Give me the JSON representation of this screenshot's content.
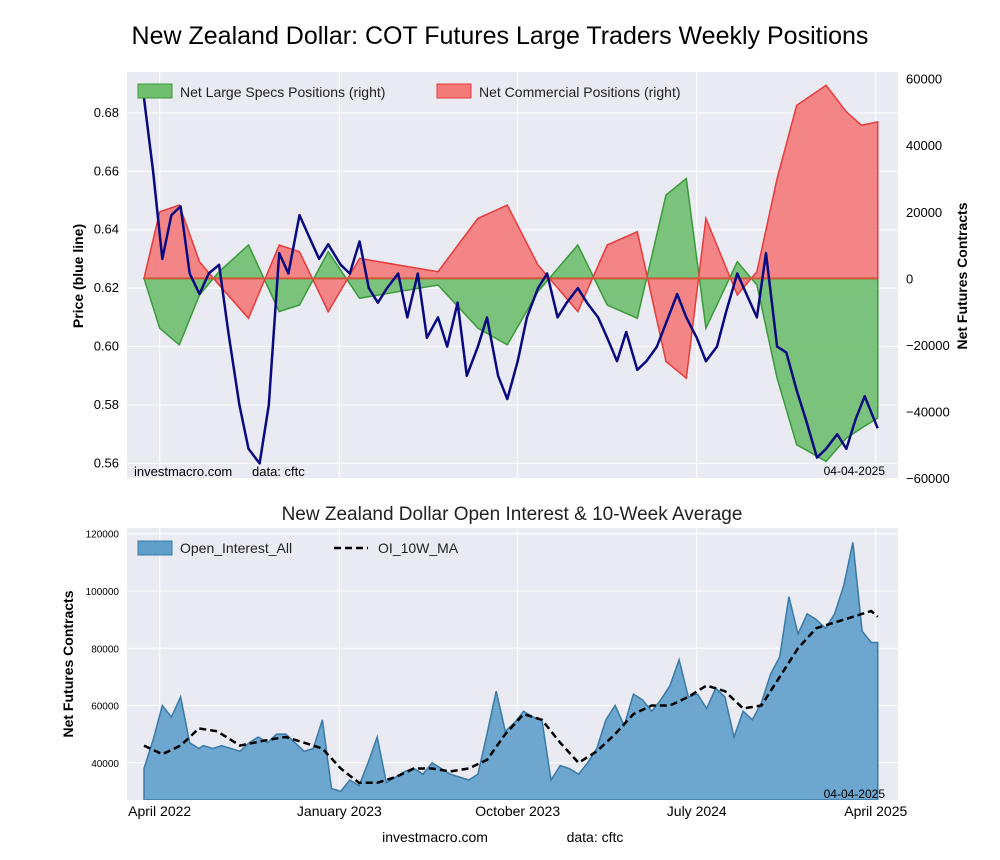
{
  "page": {
    "title": "New Zealand Dollar: COT Futures Large Traders Weekly Positions",
    "footer_left": "investmacro.com",
    "footer_right": "data: cftc"
  },
  "chart_data": [
    {
      "type": "line",
      "title": "",
      "ylabel": "Price (blue line)",
      "y2label": "Net Futures Contracts",
      "ylim": [
        0.555,
        0.694
      ],
      "y2lim": [
        -60000,
        62000
      ],
      "yticks": [
        "0.56",
        "0.58",
        "0.60",
        "0.62",
        "0.64",
        "0.66",
        "0.68"
      ],
      "y2ticks": [
        "−60000",
        "−40000",
        "−20000",
        "0",
        "20000",
        "40000",
        "60000"
      ],
      "grid": true,
      "legend": "top-left",
      "watermark_left": "investmacro.com",
      "watermark_mid": "data: cftc",
      "date_label": "04-04-2025",
      "series": [
        {
          "name": "Net Large Specs Positions (right)",
          "color": "#3a9a3a",
          "x": [
            "2022-03-08",
            "2022-04-01",
            "2022-05-01",
            "2022-06-01",
            "2022-07-01",
            "2022-08-15",
            "2022-10-01",
            "2022-11-01",
            "2022-12-15",
            "2023-02-01",
            "2023-04-01",
            "2023-06-01",
            "2023-08-01",
            "2023-09-15",
            "2023-11-01",
            "2024-01-01",
            "2024-02-15",
            "2024-04-01",
            "2024-05-15",
            "2024-06-15",
            "2024-07-15",
            "2024-09-01",
            "2024-10-01",
            "2024-11-01",
            "2024-12-01",
            "2025-01-15",
            "2025-02-15",
            "2025-03-10",
            "2025-04-04"
          ],
          "values": [
            0,
            -15000,
            -20000,
            -5000,
            2000,
            10000,
            -10000,
            -8000,
            8000,
            -6000,
            -4000,
            -2000,
            -15000,
            -20000,
            -4000,
            10000,
            -8000,
            -12000,
            25000,
            30000,
            -15000,
            5000,
            -2000,
            -30000,
            -50000,
            -55000,
            -48000,
            -45000,
            -42000
          ]
        },
        {
          "name": "Net Commercial Positions (right)",
          "color": "#e83a3a",
          "x": [
            "2022-03-08",
            "2022-04-01",
            "2022-05-01",
            "2022-06-01",
            "2022-07-01",
            "2022-08-15",
            "2022-10-01",
            "2022-11-01",
            "2022-12-15",
            "2023-02-01",
            "2023-04-01",
            "2023-06-01",
            "2023-08-01",
            "2023-09-15",
            "2023-11-01",
            "2024-01-01",
            "2024-02-15",
            "2024-04-01",
            "2024-05-15",
            "2024-06-15",
            "2024-07-15",
            "2024-09-01",
            "2024-10-01",
            "2024-11-01",
            "2024-12-01",
            "2025-01-15",
            "2025-02-15",
            "2025-03-10",
            "2025-04-04"
          ],
          "values": [
            0,
            20000,
            22000,
            5000,
            -2000,
            -12000,
            10000,
            8000,
            -10000,
            6000,
            4000,
            2000,
            18000,
            22000,
            4000,
            -10000,
            10000,
            14000,
            -25000,
            -30000,
            18000,
            -5000,
            2000,
            30000,
            52000,
            58000,
            50000,
            46000,
            47000
          ]
        },
        {
          "name": "Price",
          "color": "#0a0a80",
          "x": [
            "2022-03-08",
            "2022-03-22",
            "2022-04-05",
            "2022-04-19",
            "2022-05-03",
            "2022-05-17",
            "2022-06-01",
            "2022-06-15",
            "2022-07-01",
            "2022-07-15",
            "2022-08-01",
            "2022-08-15",
            "2022-09-01",
            "2022-09-15",
            "2022-10-01",
            "2022-10-15",
            "2022-11-01",
            "2022-11-15",
            "2022-12-01",
            "2022-12-15",
            "2023-01-03",
            "2023-01-17",
            "2023-02-01",
            "2023-02-15",
            "2023-03-01",
            "2023-03-15",
            "2023-04-01",
            "2023-04-15",
            "2023-05-01",
            "2023-05-15",
            "2023-06-01",
            "2023-06-15",
            "2023-07-01",
            "2023-07-15",
            "2023-08-01",
            "2023-08-15",
            "2023-09-01",
            "2023-09-15",
            "2023-10-01",
            "2023-10-15",
            "2023-11-01",
            "2023-11-15",
            "2023-12-01",
            "2023-12-15",
            "2024-01-01",
            "2024-01-15",
            "2024-02-01",
            "2024-02-15",
            "2024-03-01",
            "2024-03-15",
            "2024-04-01",
            "2024-04-15",
            "2024-05-01",
            "2024-05-15",
            "2024-06-01",
            "2024-06-15",
            "2024-07-01",
            "2024-07-15",
            "2024-08-01",
            "2024-08-15",
            "2024-09-01",
            "2024-09-15",
            "2024-10-01",
            "2024-10-15",
            "2024-11-01",
            "2024-11-15",
            "2024-12-01",
            "2024-12-15",
            "2025-01-01",
            "2025-01-15",
            "2025-02-01",
            "2025-02-15",
            "2025-03-01",
            "2025-03-15",
            "2025-04-04"
          ],
          "values": [
            0.685,
            0.66,
            0.63,
            0.645,
            0.648,
            0.625,
            0.618,
            0.625,
            0.628,
            0.605,
            0.58,
            0.565,
            0.56,
            0.58,
            0.632,
            0.625,
            0.645,
            0.638,
            0.63,
            0.635,
            0.628,
            0.625,
            0.636,
            0.62,
            0.615,
            0.62,
            0.625,
            0.61,
            0.625,
            0.603,
            0.61,
            0.6,
            0.615,
            0.59,
            0.6,
            0.61,
            0.59,
            0.582,
            0.595,
            0.61,
            0.62,
            0.625,
            0.61,
            0.615,
            0.62,
            0.615,
            0.61,
            0.603,
            0.595,
            0.605,
            0.592,
            0.595,
            0.6,
            0.608,
            0.618,
            0.61,
            0.603,
            0.595,
            0.6,
            0.612,
            0.625,
            0.618,
            0.61,
            0.632,
            0.6,
            0.598,
            0.585,
            0.575,
            0.562,
            0.565,
            0.57,
            0.565,
            0.575,
            0.583,
            0.572
          ]
        }
      ]
    },
    {
      "type": "area",
      "title": "New Zealand Dollar Open Interest & 10-Week Average",
      "ylabel": "Net Futures Contracts",
      "ylim": [
        27000,
        122000
      ],
      "yticks": [
        "40000",
        "60000",
        "80000",
        "100000",
        "120000"
      ],
      "xticks": [
        "April 2022",
        "January 2023",
        "October 2023",
        "July 2024",
        "April 2025"
      ],
      "grid": true,
      "legend": "top-left",
      "date_label": "04-04-2025",
      "series": [
        {
          "name": "Open_Interest_All",
          "color": "#4a8fc0",
          "x": [
            "2022-03-08",
            "2022-03-22",
            "2022-04-05",
            "2022-04-19",
            "2022-05-03",
            "2022-05-17",
            "2022-05-31",
            "2022-06-07",
            "2022-06-21",
            "2022-07-05",
            "2022-07-19",
            "2022-08-02",
            "2022-08-16",
            "2022-08-30",
            "2022-09-13",
            "2022-09-27",
            "2022-10-11",
            "2022-10-25",
            "2022-11-08",
            "2022-11-22",
            "2022-12-06",
            "2022-12-20",
            "2023-01-03",
            "2023-01-17",
            "2023-01-31",
            "2023-02-14",
            "2023-02-28",
            "2023-03-14",
            "2023-03-28",
            "2023-04-11",
            "2023-04-25",
            "2023-05-09",
            "2023-05-23",
            "2023-06-06",
            "2023-06-20",
            "2023-07-04",
            "2023-07-18",
            "2023-08-01",
            "2023-08-15",
            "2023-08-29",
            "2023-09-12",
            "2023-09-26",
            "2023-10-10",
            "2023-10-24",
            "2023-11-07",
            "2023-11-21",
            "2023-12-05",
            "2023-12-19",
            "2024-01-02",
            "2024-01-16",
            "2024-01-30",
            "2024-02-13",
            "2024-02-27",
            "2024-03-12",
            "2024-03-26",
            "2024-04-09",
            "2024-04-23",
            "2024-05-07",
            "2024-05-21",
            "2024-06-04",
            "2024-06-18",
            "2024-07-02",
            "2024-07-16",
            "2024-07-30",
            "2024-08-13",
            "2024-08-27",
            "2024-09-10",
            "2024-09-24",
            "2024-10-08",
            "2024-10-22",
            "2024-11-05",
            "2024-11-19",
            "2024-12-03",
            "2024-12-17",
            "2024-12-31",
            "2025-01-14",
            "2025-01-28",
            "2025-02-11",
            "2025-02-25",
            "2025-03-11",
            "2025-03-25",
            "2025-04-04"
          ],
          "values": [
            38000,
            48000,
            60000,
            56000,
            63000,
            47000,
            45000,
            46000,
            45000,
            46000,
            45000,
            44000,
            47000,
            49000,
            47000,
            50000,
            50000,
            47000,
            44000,
            45000,
            55000,
            31000,
            30000,
            34000,
            32000,
            40000,
            49000,
            33000,
            35000,
            37000,
            38000,
            36000,
            40000,
            38000,
            36000,
            35000,
            34000,
            36000,
            50000,
            65000,
            51000,
            54000,
            58000,
            56000,
            55000,
            34000,
            39000,
            38000,
            36000,
            40000,
            45000,
            55000,
            60000,
            53000,
            64000,
            62000,
            58000,
            62000,
            67000,
            76000,
            63000,
            64000,
            59000,
            66000,
            63000,
            49000,
            58000,
            55000,
            61000,
            71000,
            77000,
            98000,
            85000,
            92000,
            90000,
            87000,
            92000,
            102000,
            117000,
            86000,
            82000,
            82000
          ]
        },
        {
          "name": "OI_10W_MA",
          "color": "#000000",
          "x": [
            "2022-03-08",
            "2022-04-05",
            "2022-05-03",
            "2022-05-31",
            "2022-06-28",
            "2022-08-02",
            "2022-09-13",
            "2022-10-11",
            "2022-11-08",
            "2022-12-06",
            "2023-01-03",
            "2023-01-31",
            "2023-02-28",
            "2023-03-28",
            "2023-04-25",
            "2023-05-23",
            "2023-06-20",
            "2023-07-18",
            "2023-08-15",
            "2023-09-12",
            "2023-10-10",
            "2023-11-07",
            "2023-12-05",
            "2024-01-02",
            "2024-01-30",
            "2024-02-27",
            "2024-03-26",
            "2024-04-23",
            "2024-05-21",
            "2024-06-18",
            "2024-07-16",
            "2024-08-13",
            "2024-09-10",
            "2024-10-08",
            "2024-11-05",
            "2024-12-03",
            "2024-12-31",
            "2025-01-28",
            "2025-02-25",
            "2025-03-25",
            "2025-04-04"
          ],
          "values": [
            46000,
            43000,
            46000,
            52000,
            51000,
            46000,
            48000,
            49000,
            47000,
            45000,
            38000,
            33000,
            33000,
            35000,
            38000,
            38000,
            37000,
            38000,
            41000,
            50000,
            57000,
            55000,
            47000,
            40000,
            44000,
            50000,
            57000,
            60000,
            60000,
            63000,
            67000,
            65000,
            59000,
            60000,
            70000,
            80000,
            87000,
            89000,
            91000,
            93000,
            91000
          ]
        }
      ]
    }
  ]
}
